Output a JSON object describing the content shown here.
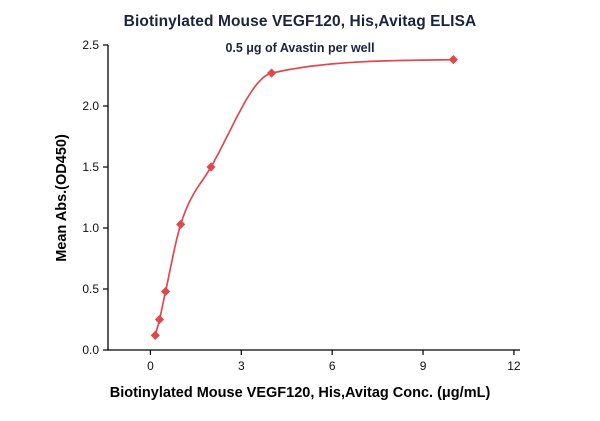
{
  "colors": {
    "title-color": "#1b2340",
    "axis-text": "#000000"
  },
  "chart_data": {
    "type": "line",
    "title": "Biotinylated Mouse VEGF120, His,Avitag ELISA",
    "subtitle": "0.5 μg of Avastin per well",
    "xlabel": "Biotinylated Mouse VEGF120, His,Avitag Conc. (μg/mL)",
    "ylabel": "Mean Abs.(OD450)",
    "x": [
      0.16,
      0.3,
      0.5,
      1.0,
      2.0,
      4.0,
      10.0
    ],
    "y": [
      0.12,
      0.25,
      0.48,
      1.03,
      1.5,
      2.27,
      2.38
    ],
    "xlim": [
      -1.4,
      12.2
    ],
    "ylim": [
      0,
      2.5
    ],
    "xticks": [
      0,
      3,
      6,
      9,
      12
    ],
    "yticks": [
      0.0,
      0.5,
      1.0,
      1.5,
      2.0,
      2.5
    ],
    "series_color": "#e0484e",
    "marker": "diamond",
    "grid": false,
    "legend_position": "none"
  }
}
